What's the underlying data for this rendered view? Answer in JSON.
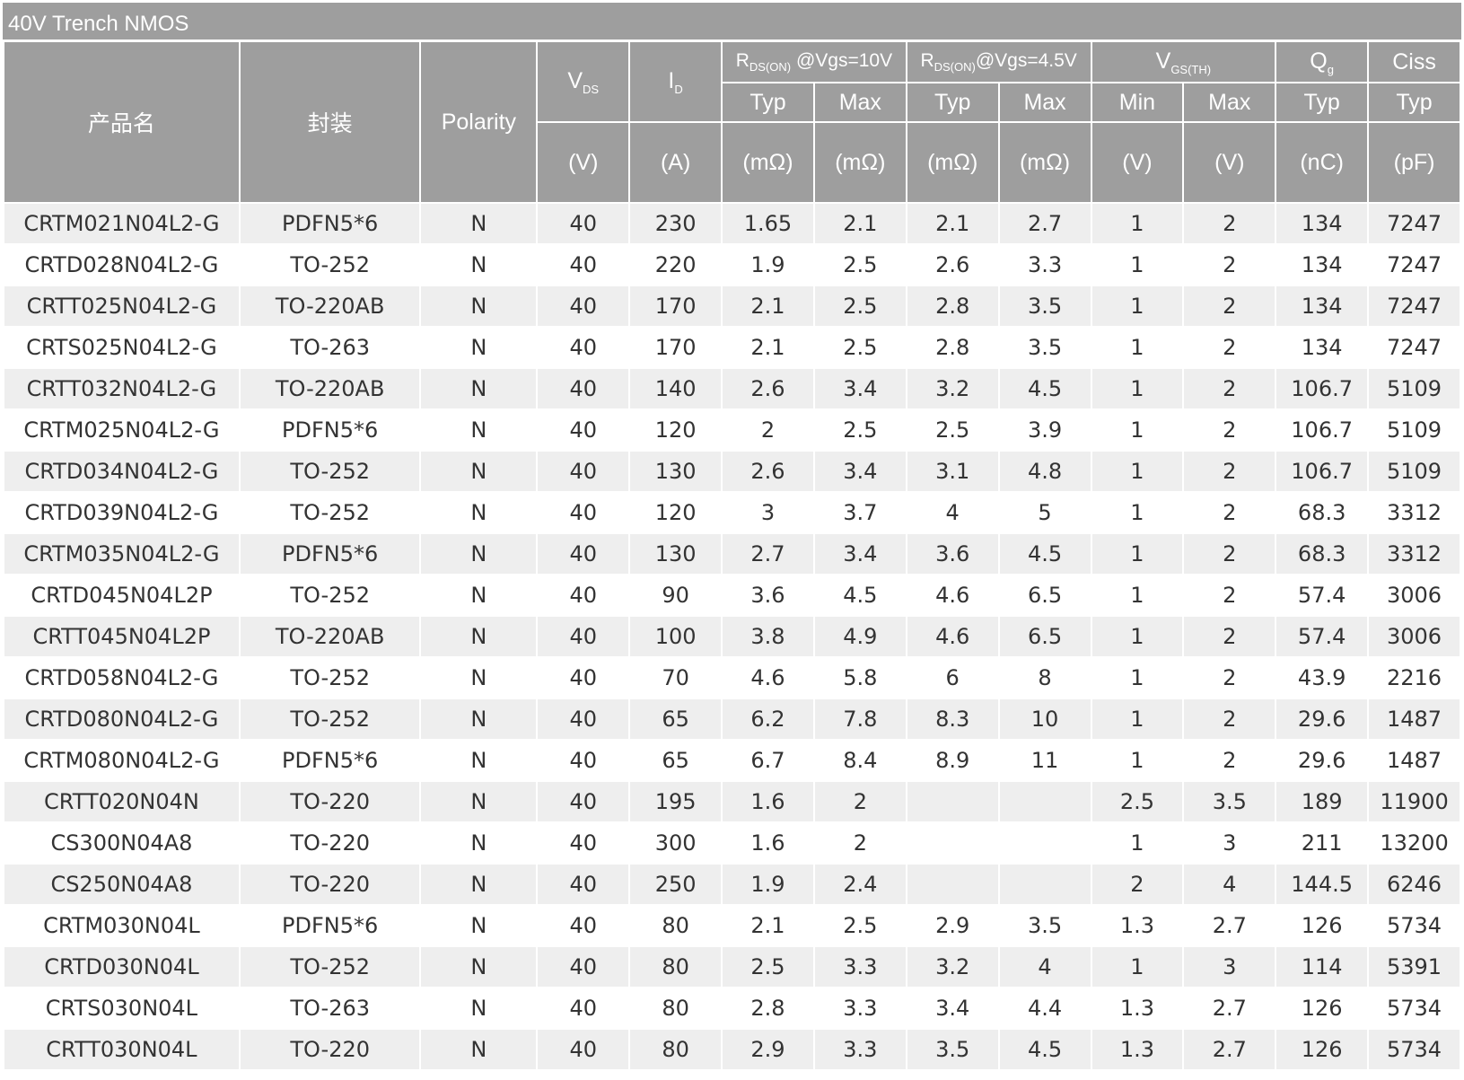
{
  "title": "40V Trench NMOS",
  "headers": {
    "product": "产品名",
    "package": "封装",
    "polarity": "Polarity",
    "vds": {
      "main": "V",
      "sub": "DS",
      "unit": "(V)"
    },
    "id": {
      "main": "I",
      "sub": "D",
      "unit": "(A)"
    },
    "rds10": {
      "main": "R",
      "sub": "DS(ON)",
      "cond": " @Vgs=10V",
      "typ": "Typ",
      "max": "Max",
      "unit_typ": "(mΩ)",
      "unit_max": "(mΩ)"
    },
    "rds45": {
      "main": "R",
      "sub": "DS(ON)",
      "cond": "@Vgs=4.5V",
      "typ": "Typ",
      "max": "Max",
      "unit_typ": "(mΩ)",
      "unit_max": "(mΩ)"
    },
    "vgs": {
      "main": "V",
      "sub": "GS(TH)",
      "min": "Min",
      "max": "Max",
      "unit_min": "(V)",
      "unit_max": "(V)"
    },
    "qg": {
      "main": "Q",
      "sub": "g",
      "typ": "Typ",
      "unit": "(nC)"
    },
    "ciss": {
      "main": "Ciss",
      "typ": "Typ",
      "unit": "(pF)"
    }
  },
  "rows": [
    [
      "CRTM021N04L2-G",
      "PDFN5*6",
      "N",
      "40",
      "230",
      "1.65",
      "2.1",
      "2.1",
      "2.7",
      "1",
      "2",
      "134",
      "7247"
    ],
    [
      "CRTD028N04L2-G",
      "TO-252",
      "N",
      "40",
      "220",
      "1.9",
      "2.5",
      "2.6",
      "3.3",
      "1",
      "2",
      "134",
      "7247"
    ],
    [
      "CRTT025N04L2-G",
      "TO-220AB",
      "N",
      "40",
      "170",
      "2.1",
      "2.5",
      "2.8",
      "3.5",
      "1",
      "2",
      "134",
      "7247"
    ],
    [
      "CRTS025N04L2-G",
      "TO-263",
      "N",
      "40",
      "170",
      "2.1",
      "2.5",
      "2.8",
      "3.5",
      "1",
      "2",
      "134",
      "7247"
    ],
    [
      "CRTT032N04L2-G",
      "TO-220AB",
      "N",
      "40",
      "140",
      "2.6",
      "3.4",
      "3.2",
      "4.5",
      "1",
      "2",
      "106.7",
      "5109"
    ],
    [
      "CRTM025N04L2-G",
      "PDFN5*6",
      "N",
      "40",
      "120",
      "2",
      "2.5",
      "2.5",
      "3.9",
      "1",
      "2",
      "106.7",
      "5109"
    ],
    [
      "CRTD034N04L2-G",
      "TO-252",
      "N",
      "40",
      "130",
      "2.6",
      "3.4",
      "3.1",
      "4.8",
      "1",
      "2",
      "106.7",
      "5109"
    ],
    [
      "CRTD039N04L2-G",
      "TO-252",
      "N",
      "40",
      "120",
      "3",
      "3.7",
      "4",
      "5",
      "1",
      "2",
      "68.3",
      "3312"
    ],
    [
      "CRTM035N04L2-G",
      "PDFN5*6",
      "N",
      "40",
      "130",
      "2.7",
      "3.4",
      "3.6",
      "4.5",
      "1",
      "2",
      "68.3",
      "3312"
    ],
    [
      "CRTD045N04L2P",
      "TO-252",
      "N",
      "40",
      "90",
      "3.6",
      "4.5",
      "4.6",
      "6.5",
      "1",
      "2",
      "57.4",
      "3006"
    ],
    [
      "CRTT045N04L2P",
      "TO-220AB",
      "N",
      "40",
      "100",
      "3.8",
      "4.9",
      "4.6",
      "6.5",
      "1",
      "2",
      "57.4",
      "3006"
    ],
    [
      "CRTD058N04L2-G",
      "TO-252",
      "N",
      "40",
      "70",
      "4.6",
      "5.8",
      "6",
      "8",
      "1",
      "2",
      "43.9",
      "2216"
    ],
    [
      "CRTD080N04L2-G",
      "TO-252",
      "N",
      "40",
      "65",
      "6.2",
      "7.8",
      "8.3",
      "10",
      "1",
      "2",
      "29.6",
      "1487"
    ],
    [
      "CRTM080N04L2-G",
      "PDFN5*6",
      "N",
      "40",
      "65",
      "6.7",
      "8.4",
      "8.9",
      "11",
      "1",
      "2",
      "29.6",
      "1487"
    ],
    [
      "CRTT020N04N",
      "TO-220",
      "N",
      "40",
      "195",
      "1.6",
      "2",
      "",
      "",
      "2.5",
      "3.5",
      "189",
      "11900"
    ],
    [
      "CS300N04A8",
      "TO-220",
      "N",
      "40",
      "300",
      "1.6",
      "2",
      "",
      "",
      "1",
      "3",
      "211",
      "13200"
    ],
    [
      "CS250N04A8",
      "TO-220",
      "N",
      "40",
      "250",
      "1.9",
      "2.4",
      "",
      "",
      "2",
      "4",
      "144.5",
      "6246"
    ],
    [
      "CRTM030N04L",
      "PDFN5*6",
      "N",
      "40",
      "80",
      "2.1",
      "2.5",
      "2.9",
      "3.5",
      "1.3",
      "2.7",
      "126",
      "5734"
    ],
    [
      "CRTD030N04L",
      "TO-252",
      "N",
      "40",
      "80",
      "2.5",
      "3.3",
      "3.2",
      "4",
      "1",
      "3",
      "114",
      "5391"
    ],
    [
      "CRTS030N04L",
      "TO-263",
      "N",
      "40",
      "80",
      "2.8",
      "3.3",
      "3.4",
      "4.4",
      "1.3",
      "2.7",
      "126",
      "5734"
    ],
    [
      "CRTT030N04L",
      "TO-220",
      "N",
      "40",
      "80",
      "2.9",
      "3.3",
      "3.5",
      "4.5",
      "1.3",
      "2.7",
      "126",
      "5734"
    ]
  ]
}
